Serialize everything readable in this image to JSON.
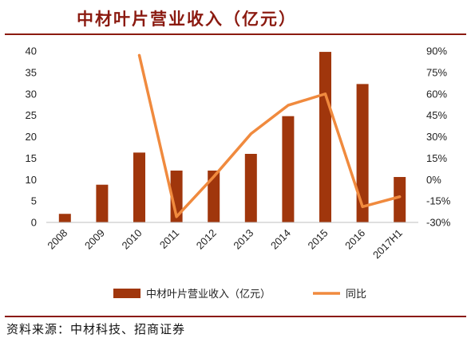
{
  "title": "中材叶片营业收入（亿元）",
  "source": "资料来源：中材科技、招商证券",
  "chart_data": {
    "type": "bar+line",
    "title": "中材叶片营业收入（亿元）",
    "categories": [
      "2008",
      "2009",
      "2010",
      "2011",
      "2012",
      "2013",
      "2014",
      "2015",
      "2016",
      "2017H1"
    ],
    "series": [
      {
        "name": "中材叶片营业收入（亿元）",
        "type": "bar",
        "axis": "left",
        "color": "#a0360c",
        "values": [
          2.0,
          8.8,
          16.3,
          12.1,
          12.1,
          16.0,
          24.8,
          39.8,
          32.3,
          10.6
        ]
      },
      {
        "name": "同比",
        "type": "line",
        "axis": "right",
        "color": "#f08a3e",
        "values": [
          null,
          null,
          87,
          -26,
          2,
          32,
          52,
          60,
          -19,
          -12
        ]
      }
    ],
    "left_axis": {
      "ylim": [
        0,
        40
      ],
      "ticks": [
        "0",
        "5",
        "10",
        "15",
        "20",
        "25",
        "30",
        "35",
        "40"
      ]
    },
    "right_axis": {
      "ylim": [
        -30,
        90
      ],
      "ticks": [
        "-30%",
        "-15%",
        "0%",
        "15%",
        "30%",
        "45%",
        "60%",
        "75%",
        "90%"
      ]
    },
    "grid": false,
    "legend_position": "bottom"
  }
}
